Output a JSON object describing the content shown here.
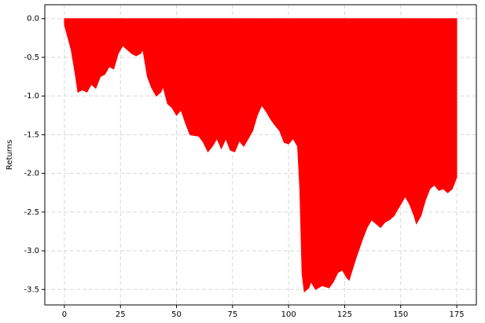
{
  "chart_data": {
    "type": "area",
    "ylabel": "Returns",
    "color": "#ff0000",
    "grid": true,
    "x": [
      0,
      3,
      5,
      6,
      8,
      10,
      12,
      14,
      16,
      18,
      20,
      22,
      24,
      26,
      28,
      30,
      32,
      34,
      35,
      37,
      39,
      41,
      43,
      44,
      46,
      48,
      50,
      52,
      54,
      56,
      60,
      62,
      64,
      66,
      68,
      70,
      72,
      74,
      76,
      78,
      80,
      82,
      84,
      86,
      88,
      90,
      92,
      94,
      96,
      98,
      100,
      102,
      104,
      105,
      106,
      107,
      109,
      110,
      112,
      115,
      118,
      120,
      122,
      124,
      126,
      127,
      130,
      133,
      135,
      137,
      139,
      141,
      143,
      145,
      147,
      149,
      151,
      152,
      154,
      156,
      157,
      159,
      161,
      163,
      165,
      167,
      169,
      171,
      173,
      175
    ],
    "values": [
      -0.08,
      -0.4,
      -0.75,
      -0.95,
      -0.92,
      -0.95,
      -0.85,
      -0.9,
      -0.75,
      -0.72,
      -0.62,
      -0.65,
      -0.45,
      -0.35,
      -0.4,
      -0.45,
      -0.48,
      -0.45,
      -0.4,
      -0.75,
      -0.9,
      -1.0,
      -0.95,
      -0.88,
      -1.1,
      -1.15,
      -1.25,
      -1.18,
      -1.35,
      -1.5,
      -1.52,
      -1.6,
      -1.72,
      -1.65,
      -1.55,
      -1.68,
      -1.55,
      -1.7,
      -1.72,
      -1.58,
      -1.65,
      -1.55,
      -1.45,
      -1.25,
      -1.12,
      -1.2,
      -1.3,
      -1.38,
      -1.45,
      -1.6,
      -1.62,
      -1.55,
      -1.65,
      -2.2,
      -3.3,
      -3.53,
      -3.48,
      -3.4,
      -3.5,
      -3.45,
      -3.48,
      -3.4,
      -3.28,
      -3.25,
      -3.35,
      -3.38,
      -3.1,
      -2.85,
      -2.7,
      -2.6,
      -2.65,
      -2.7,
      -2.63,
      -2.6,
      -2.55,
      -2.45,
      -2.35,
      -2.3,
      -2.4,
      -2.55,
      -2.65,
      -2.55,
      -2.35,
      -2.2,
      -2.15,
      -2.22,
      -2.2,
      -2.25,
      -2.2,
      -2.05
    ],
    "xlim": [
      -8.75,
      183.75
    ],
    "ylim": [
      -3.7,
      0.18
    ],
    "xticks": [
      0,
      25,
      50,
      75,
      100,
      125,
      150,
      175
    ],
    "yticks": [
      {
        "value": 0,
        "label": "0.0"
      },
      -0.5,
      {
        "value": -1,
        "label": "-1.0"
      },
      -1.5,
      {
        "value": -2,
        "label": "-2.0"
      },
      -2.5,
      {
        "value": -3,
        "label": "-3.0"
      },
      -3.5
    ]
  }
}
